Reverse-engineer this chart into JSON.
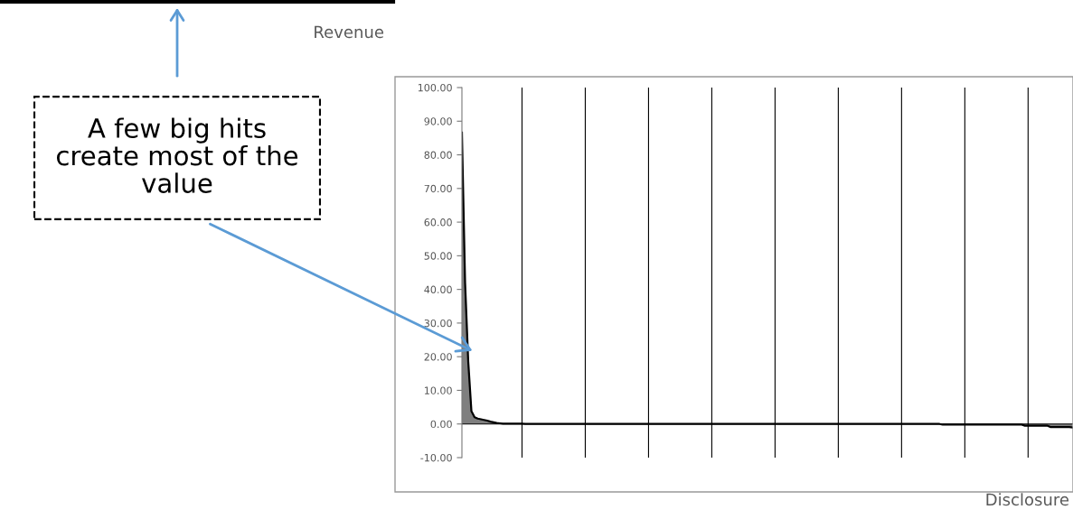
{
  "chart_data": {
    "type": "area",
    "ylabel": "Revenue",
    "xlabel": "Disclosure",
    "annotations": [
      "A few big hits create most of the value"
    ],
    "categories": [
      null,
      null,
      null,
      null,
      null,
      null,
      null,
      null,
      null,
      null,
      null,
      null,
      null,
      null,
      null,
      null,
      null,
      null,
      null,
      null,
      null,
      null,
      null,
      null,
      null,
      null,
      null,
      null,
      null,
      null,
      null,
      null,
      null,
      null,
      null,
      null,
      null,
      null,
      null,
      null,
      null,
      null,
      null,
      null,
      null,
      null,
      null,
      null,
      null,
      null,
      null,
      null,
      null,
      null,
      null,
      null,
      null,
      null,
      null,
      null,
      null,
      null,
      null,
      null,
      null,
      null,
      null,
      null,
      null,
      null,
      null,
      null,
      null,
      null,
      null,
      null,
      null,
      null,
      null,
      null,
      null,
      null,
      null,
      null,
      null,
      null,
      null,
      null,
      null,
      null,
      null,
      null,
      null,
      null,
      null,
      null,
      null,
      null,
      null,
      null,
      null,
      null,
      null,
      null,
      null,
      null,
      null,
      null,
      null,
      null,
      null,
      null,
      null,
      null,
      null,
      null,
      null,
      null,
      null,
      null,
      null,
      null,
      null,
      null,
      null,
      null,
      null,
      null,
      null,
      null,
      null,
      null,
      null,
      null,
      null,
      null,
      null,
      null,
      null,
      null,
      null,
      null,
      null,
      null,
      null,
      null,
      null,
      null,
      null,
      null,
      null,
      null,
      null,
      null,
      null,
      null,
      null,
      null,
      null,
      null,
      null,
      null,
      null,
      null,
      null,
      null,
      null,
      null,
      null,
      null,
      null,
      null,
      null,
      null,
      null,
      null,
      null,
      null,
      null,
      null,
      null,
      null,
      null,
      null,
      null,
      null,
      null,
      null,
      null,
      null,
      null,
      null,
      null,
      null
    ],
    "series": [
      {
        "color": "#000000",
        "values": [
          86.6,
          42,
          18.5,
          3.8,
          2.0,
          1.6,
          1.4,
          1.2,
          1.0,
          0.7,
          0.5,
          0.3,
          0.2,
          0.1,
          0.1,
          0.1,
          0.1,
          0.1,
          0.1,
          0.1,
          0,
          0,
          0,
          0,
          0,
          0,
          0,
          0,
          0,
          0,
          0,
          0,
          0,
          0,
          0,
          0,
          0,
          0,
          0,
          0,
          0,
          0,
          0,
          0,
          0,
          0,
          0,
          0,
          0,
          0,
          0,
          0,
          0,
          0,
          0,
          0,
          0,
          0,
          0,
          0,
          0,
          0,
          0,
          0,
          0,
          0,
          0,
          0,
          0,
          0,
          0,
          0,
          0,
          0,
          0,
          0,
          0,
          0,
          0,
          0,
          0,
          0,
          0,
          0,
          0,
          0,
          0,
          0,
          0,
          0,
          0,
          0,
          0,
          0,
          0,
          0,
          0,
          0,
          0,
          0,
          0,
          0,
          0,
          0,
          0,
          0,
          0,
          0,
          0,
          0,
          0,
          0,
          0,
          0,
          0,
          0,
          0,
          0,
          0,
          0,
          0,
          0,
          0,
          0,
          0,
          0,
          0,
          0,
          0,
          0,
          0,
          0,
          0,
          0,
          0,
          0,
          0,
          0,
          0,
          0,
          0,
          0,
          0,
          0,
          0,
          0,
          0,
          0,
          0,
          0,
          0,
          0,
          -0.2,
          -0.2,
          -0.2,
          -0.2,
          -0.2,
          -0.2,
          -0.2,
          -0.2,
          -0.2,
          -0.2,
          -0.2,
          -0.2,
          -0.2,
          -0.2,
          -0.2,
          -0.2,
          -0.2,
          -0.2,
          -0.2,
          -0.2,
          -0.2,
          -0.2,
          -0.2,
          -0.2,
          -0.2,
          -0.2,
          -0.5,
          -0.5,
          -0.5,
          -0.5,
          -0.5,
          -0.5,
          -0.5,
          -0.5,
          -0.9,
          -0.9,
          -0.9,
          -0.9,
          -0.9,
          -0.9,
          -0.9,
          -1
        ]
      }
    ],
    "ylim": [
      -10,
      100
    ],
    "yticks": [
      {
        "value": -10,
        "label": "-10.00"
      },
      {
        "value": 0,
        "label": "0.00"
      },
      {
        "value": 10,
        "label": "10.00"
      },
      {
        "value": 20,
        "label": "20.00"
      },
      {
        "value": 30,
        "label": "30.00"
      },
      {
        "value": 40,
        "label": "40.00"
      },
      {
        "value": 50,
        "label": "50.00"
      },
      {
        "value": 60,
        "label": "60.00"
      },
      {
        "value": 70,
        "label": "70.00"
      },
      {
        "value": 80,
        "label": "80.00"
      },
      {
        "value": 90,
        "label": "90.00"
      },
      {
        "value": 100,
        "label": "100.00"
      }
    ],
    "ref_lines": [
      {
        "axis": "y",
        "value": 0,
        "color": "#000000"
      }
    ],
    "grid": "x",
    "tick_labels": "y"
  }
}
